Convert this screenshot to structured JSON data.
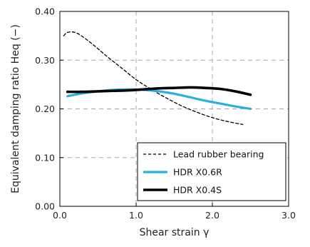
{
  "chart_data": {
    "type": "line",
    "title": "",
    "xlabel": "Shear strain γ",
    "ylabel": "Equivalent damping ratio  Heq (−)",
    "xlim": [
      0,
      3
    ],
    "ylim": [
      0,
      0.4
    ],
    "xticks": [
      0,
      1,
      2,
      3
    ],
    "xtick_labels": [
      "0.0",
      "1.0",
      "2.0",
      "3.0"
    ],
    "yticks": [
      0,
      0.1,
      0.2,
      0.3,
      0.4
    ],
    "ytick_labels": [
      "0.00",
      "0.10",
      "0.20",
      "0.30",
      "0.40"
    ],
    "grid": true,
    "grid_style": "dashed",
    "legend_position": "bottom-right",
    "series": [
      {
        "name": "Lead rubber bearing",
        "color": "#000000",
        "style": "dashed",
        "x": [
          0.05,
          0.1,
          0.2,
          0.3,
          0.45,
          0.6,
          0.8,
          1.0,
          1.2,
          1.4,
          1.6,
          1.8,
          2.0,
          2.2,
          2.4
        ],
        "y": [
          0.35,
          0.357,
          0.357,
          0.348,
          0.33,
          0.31,
          0.285,
          0.26,
          0.24,
          0.222,
          0.206,
          0.193,
          0.182,
          0.174,
          0.168
        ]
      },
      {
        "name": "HDR X0.6R",
        "color": "#29b0e0",
        "style": "solid",
        "x": [
          0.1,
          0.3,
          0.5,
          0.7,
          0.9,
          1.1,
          1.3,
          1.5,
          1.7,
          1.9,
          2.1,
          2.3,
          2.5
        ],
        "y": [
          0.226,
          0.232,
          0.236,
          0.239,
          0.24,
          0.239,
          0.236,
          0.231,
          0.224,
          0.217,
          0.211,
          0.205,
          0.2
        ]
      },
      {
        "name": "HDR X0.4S",
        "color": "#000000",
        "style": "solid",
        "x": [
          0.1,
          0.3,
          0.5,
          0.7,
          0.9,
          1.1,
          1.3,
          1.5,
          1.7,
          1.9,
          2.1,
          2.3,
          2.5
        ],
        "y": [
          0.235,
          0.235,
          0.236,
          0.237,
          0.238,
          0.24,
          0.242,
          0.243,
          0.244,
          0.243,
          0.241,
          0.236,
          0.229
        ]
      }
    ]
  }
}
